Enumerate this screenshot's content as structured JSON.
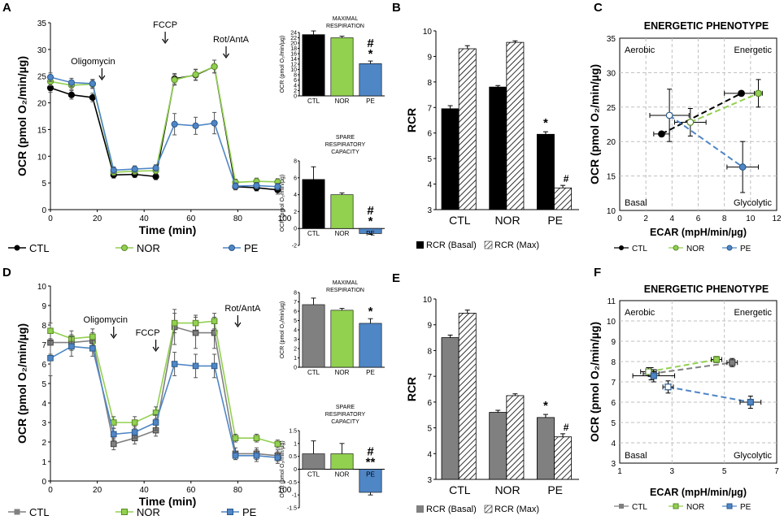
{
  "panel_labels": [
    "A",
    "B",
    "C",
    "D",
    "E",
    "F"
  ],
  "colors": {
    "ctl_top": "#000000",
    "ctl_bottom": "#808080",
    "nor": "#92d050",
    "pe": "#4f86c6",
    "hatch": "#000000"
  },
  "legend": {
    "ctl": "CTL",
    "nor": "NOR",
    "pe": "PE",
    "rcr_basal": "RCR (Basal)",
    "rcr_max": "RCR (Max)"
  },
  "chart_data": [
    {
      "id": "A",
      "type": "line",
      "xlabel": "Time (min)",
      "ylabel": "OCR (pmol O₂/min/µg)",
      "xlim": [
        0,
        100
      ],
      "ylim": [
        0,
        35
      ],
      "xticks": [
        0,
        20,
        40,
        60,
        80,
        100
      ],
      "yticks": [
        0,
        5,
        10,
        15,
        20,
        25,
        30,
        35
      ],
      "annotations": [
        {
          "text": "Oligomycin",
          "x": 22
        },
        {
          "text": "FCCP",
          "x": 49
        },
        {
          "text": "Rot/AntA",
          "x": 75
        }
      ],
      "x": [
        0,
        9,
        18,
        27,
        36,
        45,
        53,
        62,
        70,
        79,
        88,
        97
      ],
      "series": [
        {
          "name": "CTL",
          "values": [
            22.8,
            21.5,
            21.0,
            6.5,
            6.6,
            6.2,
            24.5,
            25.2,
            26.8,
            4.3,
            4.1,
            3.7
          ],
          "err": [
            0.8,
            0.8,
            0.8,
            0.6,
            0.6,
            0.6,
            1.0,
            1.0,
            1.2,
            0.6,
            0.6,
            0.8
          ]
        },
        {
          "name": "NOR",
          "values": [
            24.0,
            23.3,
            23.5,
            7.0,
            7.2,
            7.3,
            24.3,
            25.3,
            26.8,
            5.1,
            5.3,
            5.2
          ],
          "err": [
            0.8,
            0.8,
            0.8,
            0.6,
            0.6,
            0.6,
            1.0,
            1.0,
            1.2,
            0.6,
            0.6,
            0.6
          ]
        },
        {
          "name": "PE",
          "values": [
            24.8,
            23.8,
            23.6,
            7.4,
            7.6,
            7.8,
            16.0,
            15.7,
            16.2,
            4.4,
            4.5,
            4.3
          ],
          "err": [
            0.8,
            0.8,
            0.8,
            0.6,
            0.6,
            0.6,
            2.0,
            1.6,
            2.0,
            0.6,
            0.6,
            0.6
          ]
        }
      ]
    },
    {
      "id": "A-max",
      "type": "bar",
      "title": "MAXIMAL RESPIRATION",
      "ylabel": "OCR (pmol O₂/min/µg)",
      "categories": [
        "CTL",
        "NOR",
        "PE"
      ],
      "values": [
        23.2,
        22.0,
        12.2
      ],
      "err": [
        1.4,
        0.6,
        1.0
      ],
      "ylim": [
        0,
        24
      ],
      "yticks": [
        0,
        2,
        4,
        6,
        8,
        10,
        12,
        14,
        16,
        18,
        20,
        22,
        24
      ],
      "significance": {
        "PE": [
          "#",
          "*"
        ]
      }
    },
    {
      "id": "A-spare",
      "type": "bar",
      "title": "SPARE RESPIRATORY CAPACITY",
      "ylabel": "OCR (pmol O₂/min/µg)",
      "categories": [
        "CTL",
        "NOR",
        "PE"
      ],
      "values": [
        5.8,
        4.0,
        -0.6
      ],
      "err": [
        1.5,
        0.2,
        0.1
      ],
      "ylim": [
        -2,
        8
      ],
      "yticks": [
        -2,
        0,
        2,
        4,
        6,
        8
      ],
      "significance": {
        "PE": [
          "#",
          "*"
        ]
      }
    },
    {
      "id": "B",
      "type": "bar",
      "ylabel": "RCR",
      "categories": [
        "CTL",
        "NOR",
        "PE"
      ],
      "series": [
        {
          "name": "RCR (Basal)",
          "values": [
            6.95,
            7.8,
            5.95
          ],
          "err": [
            0.12,
            0.06,
            0.1
          ]
        },
        {
          "name": "RCR (Max)",
          "values": [
            9.3,
            9.55,
            3.85
          ],
          "err": [
            0.12,
            0.06,
            0.1
          ]
        }
      ],
      "ylim": [
        3,
        10
      ],
      "yticks": [
        3,
        4,
        5,
        6,
        7,
        8,
        9,
        10
      ],
      "significance": {
        "basal_PE": "*",
        "max_PE": "#"
      }
    },
    {
      "id": "C",
      "type": "scatter",
      "title": "ENERGETIC PHENOTYPE",
      "xlabel": "ECAR (mpH/min/µg)",
      "ylabel": "OCR (pmol O₂/min/µg)",
      "xlim": [
        0,
        12
      ],
      "ylim": [
        10,
        35
      ],
      "xticks": [
        0,
        2,
        4,
        6,
        8,
        10,
        12
      ],
      "yticks": [
        10,
        15,
        20,
        25,
        30,
        35
      ],
      "quadrants": [
        "Aerobic",
        "Energetic",
        "Basal",
        "Glycolytic"
      ],
      "series": [
        {
          "name": "CTL",
          "points": [
            {
              "x": 3.2,
              "y": 21.1,
              "xerr": 0.6,
              "yerr": 0
            },
            {
              "x": 9.3,
              "y": 27.0,
              "xerr": 1.3,
              "yerr": 0
            }
          ]
        },
        {
          "name": "NOR",
          "points": [
            {
              "x": 5.4,
              "y": 22.8,
              "xerr": 1.2,
              "yerr": 2.0
            },
            {
              "x": 10.6,
              "y": 27.0,
              "xerr": 0.3,
              "yerr": 2.0
            }
          ]
        },
        {
          "name": "PE",
          "points": [
            {
              "x": 3.8,
              "y": 23.8,
              "xerr": 1.5,
              "yerr": 3.8
            },
            {
              "x": 9.4,
              "y": 16.3,
              "xerr": 1.2,
              "yerr": 3.7
            }
          ]
        }
      ]
    },
    {
      "id": "D",
      "type": "line",
      "xlabel": "Time (min)",
      "ylabel": "OCR (pmol O₂/min/µg)",
      "xlim": [
        0,
        100
      ],
      "ylim": [
        0,
        10
      ],
      "xticks": [
        0,
        20,
        40,
        60,
        80,
        100
      ],
      "yticks": [
        0,
        1,
        2,
        3,
        4,
        5,
        6,
        7,
        8,
        9,
        10
      ],
      "annotations": [
        {
          "text": "Oligomycin",
          "x": 27
        },
        {
          "text": "FCCP",
          "x": 45
        },
        {
          "text": "Rot/AntA",
          "x": 80
        }
      ],
      "x": [
        0,
        9,
        18,
        27,
        36,
        45,
        53,
        62,
        70,
        79,
        88,
        97
      ],
      "series": [
        {
          "name": "CTL",
          "values": [
            7.1,
            7.1,
            7.2,
            1.9,
            2.2,
            2.6,
            7.9,
            7.6,
            7.6,
            1.4,
            1.4,
            1.3
          ],
          "err": [
            0.6,
            0.4,
            0.4,
            0.3,
            0.3,
            0.3,
            0.9,
            0.8,
            0.8,
            0.3,
            0.3,
            0.3
          ]
        },
        {
          "name": "NOR",
          "values": [
            7.7,
            7.3,
            7.4,
            3.0,
            3.0,
            3.5,
            8.1,
            8.1,
            8.2,
            2.2,
            2.2,
            1.9
          ],
          "err": [
            0.4,
            0.4,
            0.4,
            0.3,
            0.3,
            0.3,
            0.5,
            0.4,
            0.4,
            0.2,
            0.2,
            0.2
          ]
        },
        {
          "name": "PE",
          "values": [
            6.3,
            6.9,
            6.8,
            2.4,
            2.5,
            3.0,
            6.0,
            5.9,
            5.9,
            1.3,
            1.3,
            1.2
          ],
          "err": [
            0.9,
            0.5,
            0.4,
            0.3,
            0.3,
            0.4,
            0.6,
            0.6,
            0.6,
            0.2,
            0.3,
            0.3
          ]
        }
      ]
    },
    {
      "id": "D-max",
      "type": "bar",
      "title": "MAXIMAL RESPIRATION",
      "ylabel": "OCR (pmol O₂/min/µg)",
      "categories": [
        "CTL",
        "NOR",
        "PE"
      ],
      "values": [
        6.7,
        6.1,
        4.7
      ],
      "err": [
        0.7,
        0.2,
        0.5
      ],
      "ylim": [
        0,
        8
      ],
      "yticks": [
        0,
        1,
        2,
        3,
        4,
        5,
        6,
        7,
        8
      ],
      "significance": {
        "PE": [
          "*"
        ]
      }
    },
    {
      "id": "D-spare",
      "type": "bar",
      "title": "SPARE RESPIRATORY CAPACITY",
      "ylabel": "OCR (pmol O₂/min/µg)",
      "categories": [
        "CTL",
        "NOR",
        "PE"
      ],
      "values": [
        0.6,
        0.6,
        -0.9
      ],
      "err": [
        0.5,
        0.4,
        0.1
      ],
      "ylim": [
        -1.5,
        1.5
      ],
      "yticks": [
        -1.5,
        -1,
        -0.5,
        0,
        0.5,
        1,
        1.5
      ],
      "significance": {
        "PE": [
          "#",
          "**"
        ]
      }
    },
    {
      "id": "E",
      "type": "bar",
      "ylabel": "RCR",
      "categories": [
        "CTL",
        "NOR",
        "PE"
      ],
      "series": [
        {
          "name": "RCR (Basal)",
          "values": [
            8.5,
            5.6,
            5.4
          ],
          "err": [
            0.1,
            0.08,
            0.12
          ]
        },
        {
          "name": "RCR (Max)",
          "values": [
            9.45,
            6.25,
            4.65
          ],
          "err": [
            0.12,
            0.07,
            0.12
          ]
        }
      ],
      "ylim": [
        3,
        10
      ],
      "yticks": [
        3,
        4,
        5,
        6,
        7,
        8,
        9,
        10
      ],
      "significance": {
        "basal_PE": "*",
        "max_PE": "#"
      }
    },
    {
      "id": "F",
      "type": "scatter",
      "title": "ENERGETIC PHENOTYPE",
      "xlabel": "ECAR (mpH/min/µg)",
      "ylabel": "OCR (pmol O₂/min/µg)",
      "xlim": [
        1,
        7
      ],
      "ylim": [
        3,
        11
      ],
      "xticks": [
        1,
        3,
        5,
        7
      ],
      "yticks": [
        3,
        4,
        5,
        6,
        7,
        8,
        9,
        10,
        11
      ],
      "quadrants": [
        "Aerobic",
        "Energetic",
        "Basal",
        "Glycolytic"
      ],
      "series": [
        {
          "name": "CTL",
          "points": [
            {
              "x": 2.2,
              "y": 7.4,
              "xerr": 0.3,
              "yerr": 0.3
            },
            {
              "x": 5.3,
              "y": 7.95,
              "xerr": 0.2,
              "yerr": 0.2
            }
          ]
        },
        {
          "name": "NOR",
          "points": [
            {
              "x": 2.1,
              "y": 7.5,
              "xerr": 0.3,
              "yerr": 0.2
            },
            {
              "x": 4.7,
              "y": 8.1,
              "xerr": 0.2,
              "yerr": 0.15
            }
          ]
        },
        {
          "name": "PE",
          "points": [
            {
              "x": 2.85,
              "y": 6.75,
              "xerr": 0.2,
              "yerr": 0.3
            },
            {
              "x": 6.0,
              "y": 6.0,
              "xerr": 0.4,
              "yerr": 0.3
            },
            {
              "x": 2.3,
              "y": 7.3,
              "xerr": 0.8,
              "yerr": 0.3
            }
          ]
        }
      ]
    }
  ]
}
